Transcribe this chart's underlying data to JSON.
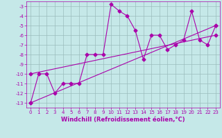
{
  "xlabel": "Windchill (Refroidissement éolien,°C)",
  "bg_color": "#c5e8e8",
  "grid_color": "#9bbcbc",
  "line_color": "#aa00aa",
  "xlim": [
    -0.5,
    23.5
  ],
  "ylim": [
    -13.5,
    -2.5
  ],
  "yticks": [
    -13,
    -12,
    -11,
    -10,
    -9,
    -8,
    -7,
    -6,
    -5,
    -4,
    -3
  ],
  "xticks": [
    0,
    1,
    2,
    3,
    4,
    5,
    6,
    7,
    8,
    9,
    10,
    11,
    12,
    13,
    14,
    15,
    16,
    17,
    18,
    19,
    20,
    21,
    22,
    23
  ],
  "series1_x": [
    0,
    1,
    2,
    3,
    4,
    5,
    6,
    7,
    8,
    9,
    10,
    11,
    12,
    13,
    14,
    15,
    16,
    17,
    18,
    19,
    20,
    21,
    22,
    23
  ],
  "series1_y": [
    -13.0,
    -10.0,
    -10.0,
    -12.0,
    -11.0,
    -11.0,
    -11.0,
    -8.0,
    -8.0,
    -8.0,
    -2.8,
    -3.5,
    -4.0,
    -5.5,
    -8.5,
    -6.0,
    -6.0,
    -7.5,
    -7.0,
    -6.5,
    -3.5,
    -6.5,
    -7.0,
    -5.0
  ],
  "series2_x": [
    0,
    23
  ],
  "series2_y": [
    -13.0,
    -5.0
  ],
  "series3_x": [
    0,
    23
  ],
  "series3_y": [
    -10.0,
    -6.0
  ],
  "marker": "D",
  "marker_size": 2.5,
  "line_width": 0.8,
  "tick_fontsize": 5.0,
  "xlabel_fontsize": 6.0
}
